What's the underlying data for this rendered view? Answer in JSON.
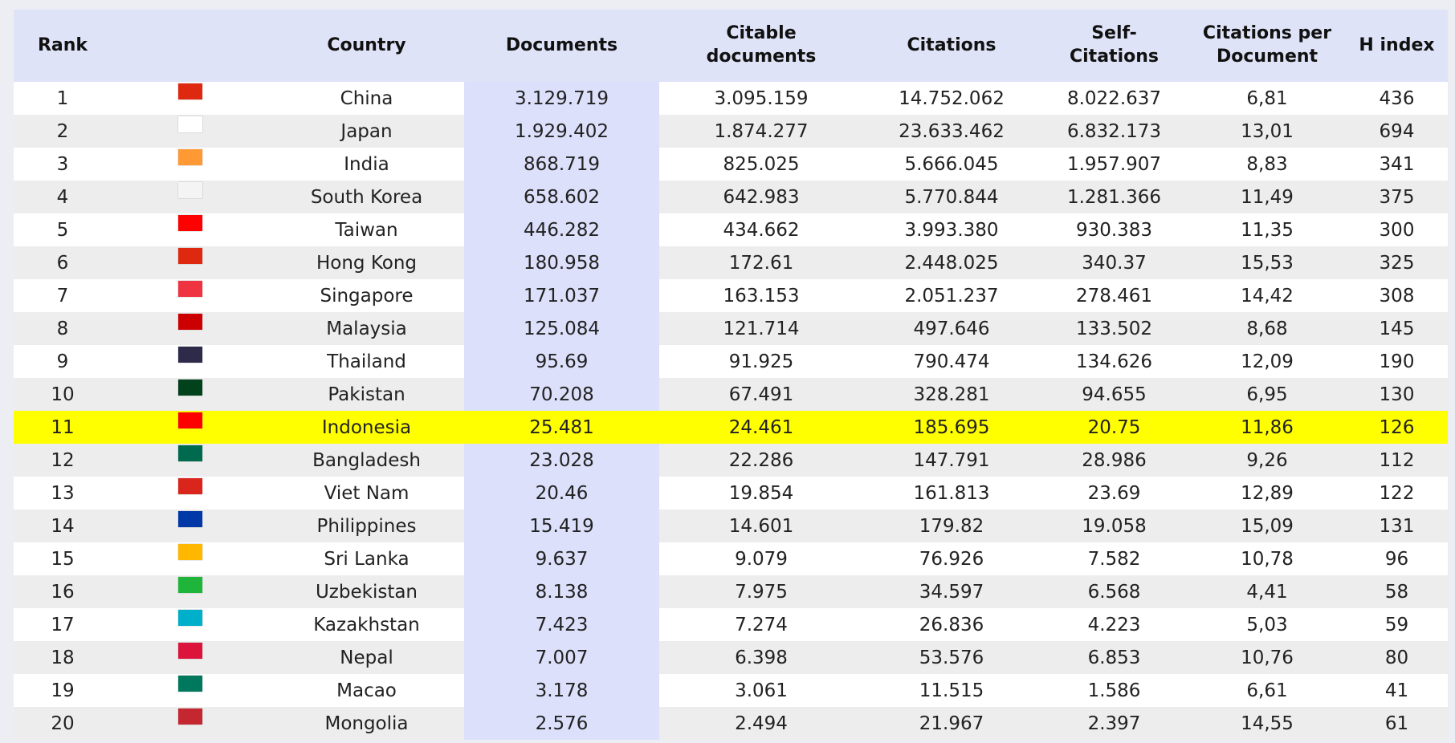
{
  "table": {
    "header": [
      "Rank",
      "Country",
      "Documents",
      "Citable\ndocuments",
      "Citations",
      "Self-\nCitations",
      "Citations per\nDocument",
      "H index"
    ],
    "rows": [
      [
        "1",
        "China",
        "3.129.719",
        "3.095.159",
        "14.752.062",
        "8.022.637",
        "6,81",
        "436"
      ],
      [
        "2",
        "Japan",
        "1.929.402",
        "1.874.277",
        "23.633.462",
        "6.832.173",
        "13,01",
        "694"
      ],
      [
        "3",
        "India",
        "868.719",
        "825.025",
        "5.666.045",
        "1.957.907",
        "8,83",
        "341"
      ],
      [
        "4",
        "South Korea",
        "658.602",
        "642.983",
        "5.770.844",
        "1.281.366",
        "11,49",
        "375"
      ],
      [
        "5",
        "Taiwan",
        "446.282",
        "434.662",
        "3.993.380",
        "930.383",
        "11,35",
        "300"
      ],
      [
        "6",
        "Hong Kong",
        "180.958",
        "172.61",
        "2.448.025",
        "340.37",
        "15,53",
        "325"
      ],
      [
        "7",
        "Singapore",
        "171.037",
        "163.153",
        "2.051.237",
        "278.461",
        "14,42",
        "308"
      ],
      [
        "8",
        "Malaysia",
        "125.084",
        "121.714",
        "497.646",
        "133.502",
        "8,68",
        "145"
      ],
      [
        "9",
        "Thailand",
        "95.69",
        "91.925",
        "790.474",
        "134.626",
        "12,09",
        "190"
      ],
      [
        "10",
        "Pakistan",
        "70.208",
        "67.491",
        "328.281",
        "94.655",
        "6,95",
        "130"
      ],
      [
        "11",
        "Indonesia",
        "25.481",
        "24.461",
        "185.695",
        "20.75",
        "11,86",
        "126"
      ],
      [
        "12",
        "Bangladesh",
        "23.028",
        "22.286",
        "147.791",
        "28.986",
        "9,26",
        "112"
      ],
      [
        "13",
        "Viet Nam",
        "20.46",
        "19.854",
        "161.813",
        "23.69",
        "12,89",
        "122"
      ],
      [
        "14",
        "Philippines",
        "15.419",
        "14.601",
        "179.82",
        "19.058",
        "15,09",
        "131"
      ],
      [
        "15",
        "Sri Lanka",
        "9.637",
        "9.079",
        "76.926",
        "7.582",
        "10,78",
        "96"
      ],
      [
        "16",
        "Uzbekistan",
        "8.138",
        "7.975",
        "34.597",
        "6.568",
        "4,41",
        "58"
      ],
      [
        "17",
        "Kazakhstan",
        "7.423",
        "7.274",
        "26.836",
        "4.223",
        "5,03",
        "59"
      ],
      [
        "18",
        "Nepal",
        "7.007",
        "6.398",
        "53.576",
        "6.853",
        "10,76",
        "80"
      ],
      [
        "19",
        "Macao",
        "3.178",
        "3.061",
        "11.515",
        "1.586",
        "6,61",
        "41"
      ],
      [
        "20",
        "Mongolia",
        "2.576",
        "2.494",
        "21.967",
        "2.397",
        "14,55",
        "61"
      ]
    ]
  }
}
